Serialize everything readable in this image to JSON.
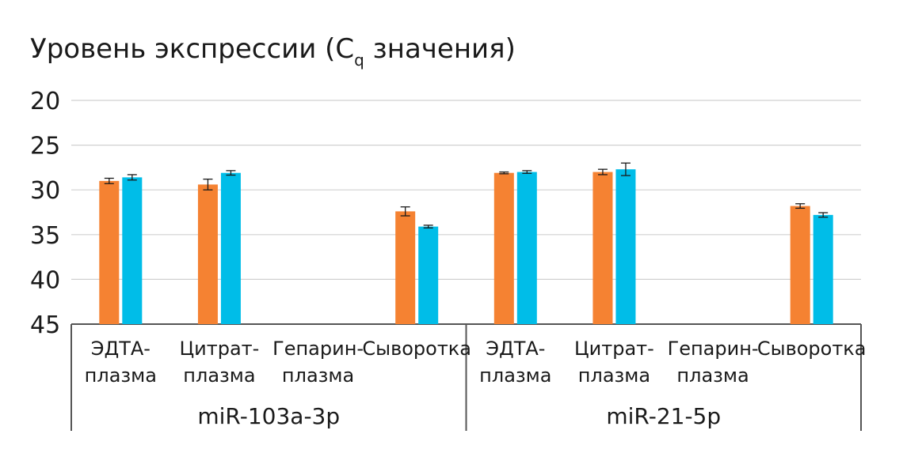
{
  "chart_data": {
    "type": "bar",
    "title": {
      "prefix": "Уровень экспрессии (C",
      "subscript": "q",
      "suffix": " значения)"
    },
    "y_axis": {
      "range": [
        20,
        45
      ],
      "inverted": true,
      "ticks": [
        "20",
        "25",
        "30",
        "35",
        "40",
        "45"
      ],
      "grid": true
    },
    "groups": [
      {
        "label": "miR-103a-3p",
        "categories": [
          {
            "lines": [
              "ЭДТА-",
              "плазма"
            ],
            "values": [
              29.0,
              28.6
            ],
            "errors": [
              0.3,
              0.3
            ]
          },
          {
            "lines": [
              "Цитрат-",
              "плазма"
            ],
            "values": [
              29.4,
              28.1
            ],
            "errors": [
              0.6,
              0.25
            ]
          },
          {
            "lines": [
              "Гепарин-",
              "плазма"
            ],
            "values": [
              null,
              null
            ],
            "errors": [
              null,
              null
            ]
          },
          {
            "lines": [
              "Сыворотка"
            ],
            "values": [
              32.4,
              34.1
            ],
            "errors": [
              0.5,
              0.15
            ]
          }
        ]
      },
      {
        "label": "miR-21-5p",
        "categories": [
          {
            "lines": [
              "ЭДТА-",
              "плазма"
            ],
            "values": [
              28.1,
              28.0
            ],
            "errors": [
              0.1,
              0.15
            ]
          },
          {
            "lines": [
              "Цитрат-",
              "плазма"
            ],
            "values": [
              28.0,
              27.7
            ],
            "errors": [
              0.3,
              0.7
            ]
          },
          {
            "lines": [
              "Гепарин-",
              "плазма"
            ],
            "values": [
              null,
              null
            ],
            "errors": [
              null,
              null
            ]
          },
          {
            "lines": [
              "Сыворотка"
            ],
            "values": [
              31.8,
              32.8
            ],
            "errors": [
              0.25,
              0.25
            ]
          }
        ]
      }
    ],
    "series_colors": [
      "#F58232",
      "#00BDE8"
    ],
    "grid_color": "#d0d0d0",
    "axis_color": "#555555",
    "error_bar_color": "#1a1a1a"
  }
}
